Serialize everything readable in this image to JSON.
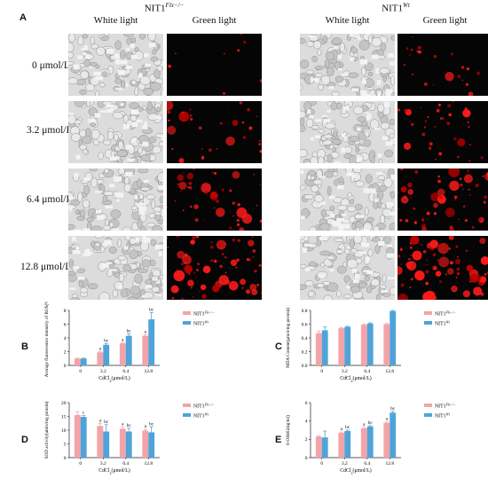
{
  "figure_a": {
    "letter": "A",
    "groups": [
      {
        "title_base": "NIT1",
        "title_sup": "Flx−/−"
      },
      {
        "title_base": "NIT1",
        "title_sup": "Wt"
      }
    ],
    "columns": [
      "White light",
      "Green light"
    ],
    "rows": [
      "0 μmol/L",
      "3.2 μmol/L",
      "6.4 μmol/L",
      "12.8 μmol/L"
    ],
    "red_fluorescence_level": {
      "flx": [
        0.05,
        0.4,
        0.6,
        0.95
      ],
      "wt": [
        0.25,
        0.45,
        0.7,
        0.95
      ]
    }
  },
  "legend": [
    {
      "base": "NIT1",
      "sup": "Flx−/−",
      "color": "#f4a3a8"
    },
    {
      "base": "NIT1",
      "sup": "Wt",
      "color": "#4fa3d9"
    }
  ],
  "colors": {
    "flx": "#f4a3a8",
    "wt": "#4fa3d9",
    "error": "#333333"
  },
  "chart_data": [
    {
      "id": "B",
      "type": "bar",
      "categories": [
        "0",
        "3.2",
        "6.4",
        "12.8"
      ],
      "xlabel": "CdCl2(μmol/L)",
      "ylabel": "Average fluorescence intensity of ROS(%)",
      "ylim": [
        0,
        8
      ],
      "yticks": [
        0,
        2,
        4,
        6,
        8
      ],
      "series": [
        {
          "name": "NIT1 Flx−/−",
          "values": [
            1.0,
            1.9,
            3.2,
            4.3
          ],
          "errors": [
            0.05,
            0.1,
            0.12,
            0.15
          ],
          "labels": [
            "",
            "a",
            "a",
            "a"
          ]
        },
        {
          "name": "NIT1 Wt",
          "values": [
            1.0,
            3.0,
            4.3,
            6.7
          ],
          "errors": [
            0.05,
            0.15,
            0.3,
            1.0
          ],
          "labels": [
            "",
            "bc",
            "bc",
            "bc"
          ]
        }
      ]
    },
    {
      "id": "C",
      "type": "bar",
      "categories": [
        "0",
        "3.2",
        "6.4",
        "12.8"
      ],
      "xlabel": "CdCl2(μmol/L)",
      "ylabel": "MDA Content(μmol/mg protein)",
      "ylim": [
        0,
        0.8
      ],
      "yticks": [
        "0.0",
        "0.2",
        "0.4",
        "0.6",
        "0.8"
      ],
      "series": [
        {
          "name": "NIT1 Flx−/−",
          "values": [
            0.47,
            0.54,
            0.59,
            0.6
          ],
          "errors": [
            0.03,
            0.01,
            0.01,
            0.01
          ],
          "labels": [
            "",
            "",
            "",
            ""
          ]
        },
        {
          "name": "NIT1 Wt",
          "values": [
            0.51,
            0.56,
            0.61,
            0.79
          ],
          "errors": [
            0.05,
            0.01,
            0.01,
            0.01
          ],
          "labels": [
            "",
            "",
            "",
            ""
          ]
        }
      ]
    },
    {
      "id": "D",
      "type": "bar",
      "categories": [
        "0",
        "3.2",
        "6.4",
        "12.8"
      ],
      "xlabel": "CdCl2(μmol/L)",
      "ylabel": "SOD activity(units/mg protein)",
      "ylim": [
        0,
        20
      ],
      "yticks": [
        0,
        5,
        10,
        15,
        20
      ],
      "series": [
        {
          "name": "NIT1 Flx−/−",
          "values": [
            15.5,
            11.5,
            10.5,
            9.8
          ],
          "errors": [
            1.2,
            1.0,
            0.6,
            0.5
          ],
          "labels": [
            "",
            "a",
            "a",
            "a"
          ]
        },
        {
          "name": "NIT1 Wt",
          "values": [
            14.8,
            9.5,
            9.5,
            9.2
          ],
          "errors": [
            0.5,
            2.5,
            1.2,
            2.0
          ],
          "labels": [
            "c",
            "bc",
            "bc",
            "bc"
          ]
        }
      ]
    },
    {
      "id": "E",
      "type": "bar",
      "categories": [
        "0",
        "3.2",
        "6.4",
        "12.8"
      ],
      "xlabel": "CdCl2(μmol/L)",
      "ylabel": "8-OHdG(ng/ml)",
      "ylim": [
        0,
        6
      ],
      "yticks": [
        0,
        2,
        4,
        6
      ],
      "series": [
        {
          "name": "NIT1 Flx−/−",
          "values": [
            2.3,
            2.7,
            3.2,
            3.8
          ],
          "errors": [
            0.1,
            0.1,
            0.1,
            0.1
          ],
          "labels": [
            "",
            "a",
            "a",
            "a"
          ]
        },
        {
          "name": "NIT1 Wt",
          "values": [
            2.2,
            2.9,
            3.4,
            4.9
          ],
          "errors": [
            0.7,
            0.1,
            0.1,
            0.15
          ],
          "labels": [
            "",
            "bc",
            "bc",
            "bc"
          ]
        }
      ]
    }
  ]
}
